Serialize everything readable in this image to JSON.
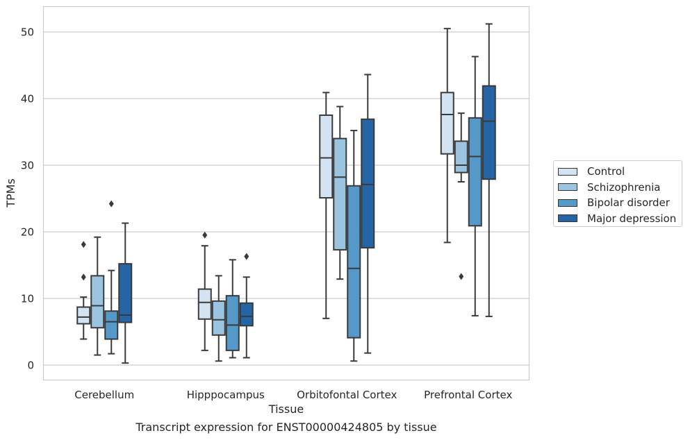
{
  "caption": "Transcript expression for ENST00000424805 by tissue",
  "chart_data": {
    "type": "box",
    "xlabel": "Tissue",
    "ylabel": "TPMs",
    "ylim": [
      -2.2,
      53.8
    ],
    "yticks": [
      0,
      10,
      20,
      30,
      40,
      50
    ],
    "grid": "horizontal",
    "legend_position": "right",
    "categories": [
      "Cerebellum",
      "Hipppocampus",
      "Orbitofontal Cortex",
      "Prefrontal Cortex"
    ],
    "series": [
      {
        "name": "Control",
        "color": "#d3e3f2",
        "boxes": [
          {
            "whislo": 3.9,
            "q1": 6.2,
            "med": 7.2,
            "q3": 8.7,
            "whishi": 10.2,
            "fliers": [
              13.2,
              18.1
            ]
          },
          {
            "whislo": 2.2,
            "q1": 6.9,
            "med": 9.4,
            "q3": 11.4,
            "whishi": 17.9,
            "fliers": [
              19.5
            ]
          },
          {
            "whislo": 7.0,
            "q1": 25.1,
            "med": 31.1,
            "q3": 37.5,
            "whishi": 40.9,
            "fliers": []
          },
          {
            "whislo": 18.4,
            "q1": 31.7,
            "med": 37.6,
            "q3": 40.9,
            "whishi": 50.5,
            "fliers": []
          }
        ]
      },
      {
        "name": "Schizophrenia",
        "color": "#9ac4df",
        "boxes": [
          {
            "whislo": 1.5,
            "q1": 5.6,
            "med": 8.9,
            "q3": 13.4,
            "whishi": 19.2,
            "fliers": []
          },
          {
            "whislo": 0.6,
            "q1": 4.5,
            "med": 6.8,
            "q3": 9.6,
            "whishi": 13.4,
            "fliers": []
          },
          {
            "whislo": 12.9,
            "q1": 17.3,
            "med": 28.2,
            "q3": 34.0,
            "whishi": 38.8,
            "fliers": []
          },
          {
            "whislo": 27.5,
            "q1": 28.9,
            "med": 30.0,
            "q3": 33.6,
            "whishi": 37.8,
            "fliers": [
              13.3
            ]
          }
        ]
      },
      {
        "name": "Bipolar disorder",
        "color": "#5599c8",
        "boxes": [
          {
            "whislo": 1.7,
            "q1": 3.9,
            "med": 6.5,
            "q3": 8.1,
            "whishi": 14.2,
            "fliers": [
              24.2
            ]
          },
          {
            "whislo": 1.1,
            "q1": 2.2,
            "med": 6.0,
            "q3": 10.4,
            "whishi": 15.8,
            "fliers": []
          },
          {
            "whislo": 0.6,
            "q1": 4.1,
            "med": 14.5,
            "q3": 26.9,
            "whishi": 35.2,
            "fliers": []
          },
          {
            "whislo": 7.4,
            "q1": 20.9,
            "med": 31.3,
            "q3": 37.1,
            "whishi": 46.3,
            "fliers": []
          }
        ]
      },
      {
        "name": "Major depression",
        "color": "#2565a6",
        "boxes": [
          {
            "whislo": 0.3,
            "q1": 6.4,
            "med": 7.5,
            "q3": 15.2,
            "whishi": 21.3,
            "fliers": []
          },
          {
            "whislo": 1.1,
            "q1": 5.9,
            "med": 7.3,
            "q3": 9.3,
            "whishi": 13.2,
            "fliers": [
              16.3
            ]
          },
          {
            "whislo": 1.8,
            "q1": 17.6,
            "med": 27.1,
            "q3": 36.9,
            "whishi": 43.6,
            "fliers": []
          },
          {
            "whislo": 7.3,
            "q1": 27.9,
            "med": 36.6,
            "q3": 41.9,
            "whishi": 51.2,
            "fliers": []
          }
        ]
      }
    ]
  }
}
